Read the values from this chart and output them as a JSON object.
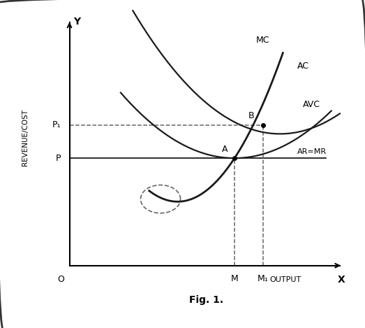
{
  "title": "Fig. 1.",
  "ylabel": "REVENUE/COST",
  "xlabel": "OUTPUT",
  "y_label_axis": "Y",
  "x_label_axis": "X",
  "origin_label": "O",
  "ar_mr_label": "AR=MR",
  "mc_label": "MC",
  "ac_label": "AC",
  "avc_label": "AVC",
  "point_A_label": "A",
  "point_B_label": "B",
  "P_label": "P",
  "P1_label": "P₁",
  "M_label": "M",
  "M1_label": "M₁",
  "background_color": "#ffffff",
  "border_color": "#333333",
  "curve_color": "#1a1a1a",
  "dashed_color": "#666666",
  "xlim": [
    0,
    10
  ],
  "ylim": [
    0,
    10
  ],
  "P_y": 4.2,
  "P1_y": 5.5,
  "M_x": 5.8,
  "M1_x": 6.8
}
